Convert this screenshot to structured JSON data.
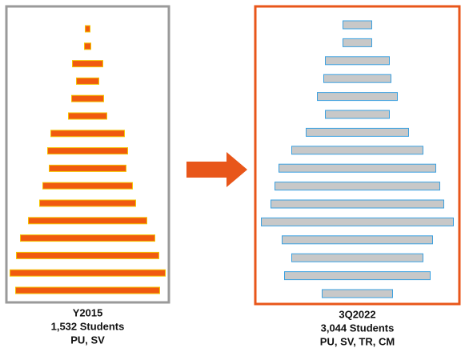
{
  "chart_data": [
    {
      "type": "bar",
      "orientation": "horizontal",
      "title": "Y2015",
      "subtitle": "1,532 Students",
      "note": "PU, SV",
      "categories": [
        null,
        null,
        null,
        null,
        null,
        null,
        null,
        null,
        null,
        null,
        null,
        null,
        null,
        null,
        null,
        null
      ],
      "values": [
        6,
        8,
        38,
        28,
        40,
        48,
        92,
        100,
        96,
        112,
        120,
        148,
        168,
        178,
        194,
        180
      ],
      "color": "#f05a0f",
      "edge_color": "#f5c400",
      "frame_color": "#9a9a9a"
    },
    {
      "type": "bar",
      "orientation": "horizontal",
      "title": "3Q2022",
      "subtitle": "3,044 Students",
      "note": "PU, SV, TR, CM",
      "categories": [
        null,
        null,
        null,
        null,
        null,
        null,
        null,
        null,
        null,
        null,
        null,
        null,
        null,
        null,
        null,
        null
      ],
      "values": [
        36,
        36,
        80,
        84,
        100,
        80,
        128,
        164,
        196,
        206,
        216,
        240,
        188,
        164,
        182,
        88
      ],
      "color": "#c8c8c8",
      "edge_color": "#3aa0e0",
      "frame_color": "#e8561a"
    }
  ]
}
